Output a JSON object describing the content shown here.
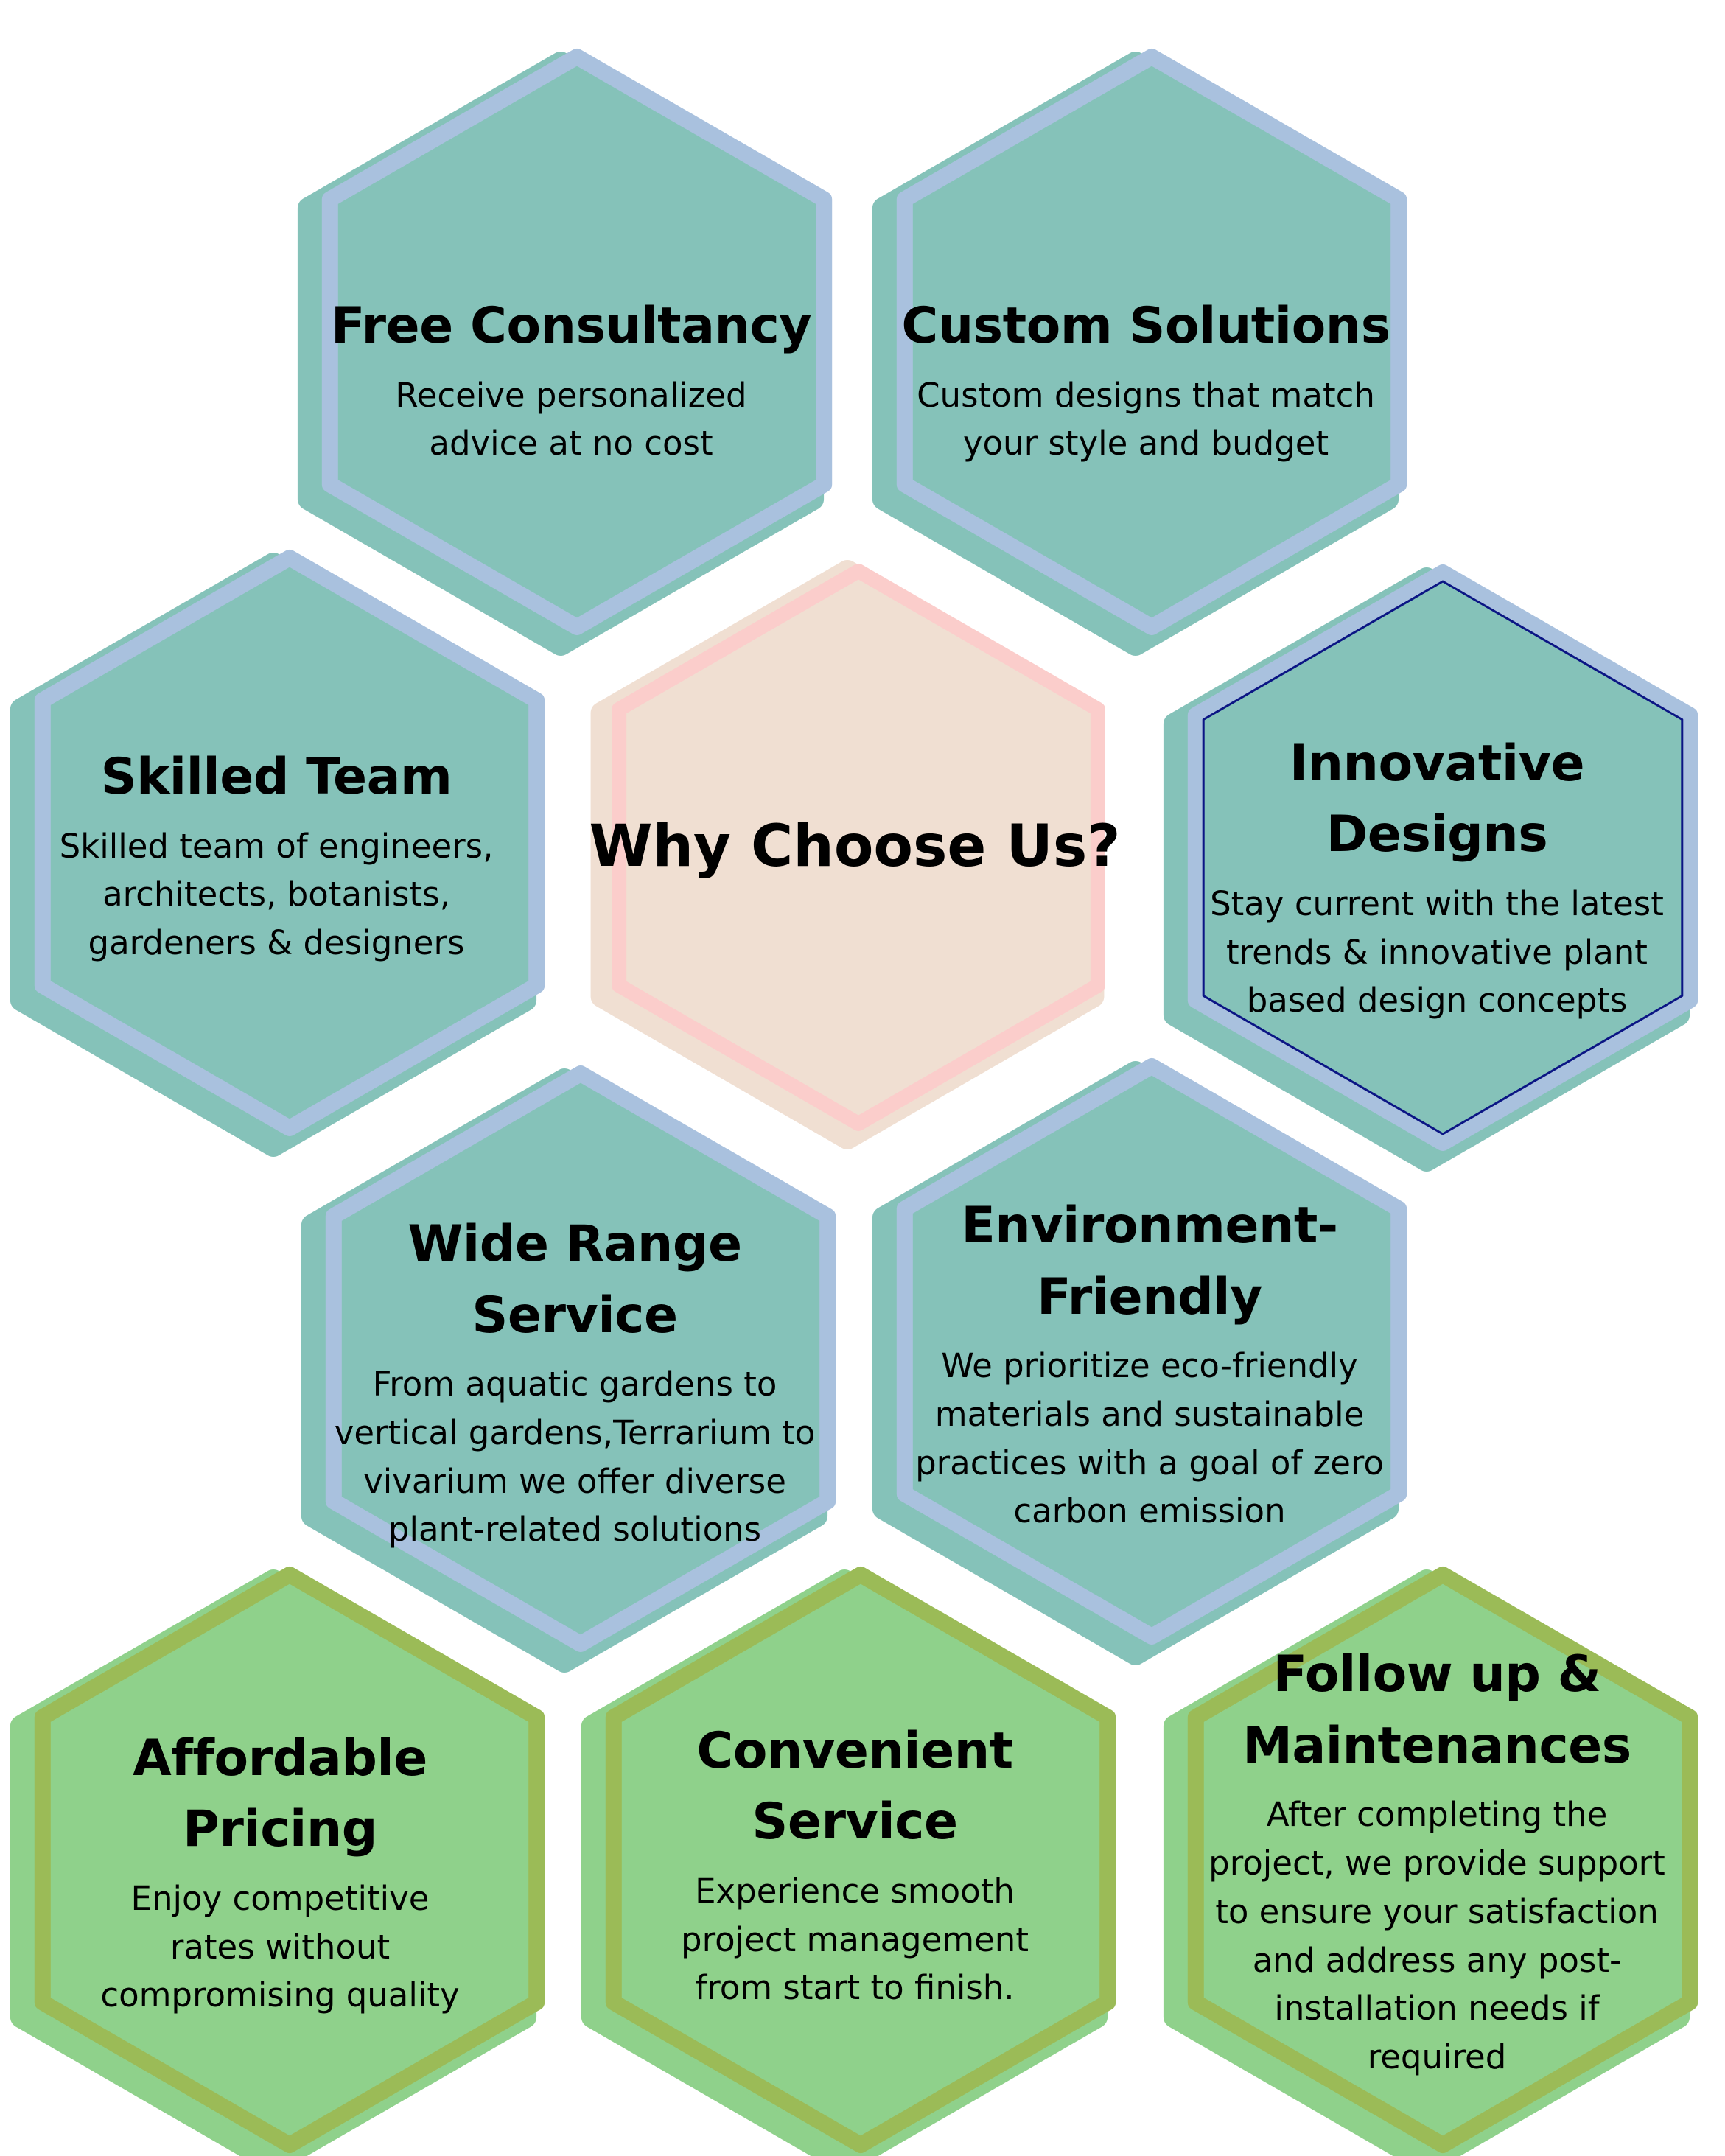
{
  "colors": {
    "teal_fill": "#85c2b9",
    "blue_border": "#a9c1de",
    "green_fill": "#8fd18b",
    "green_border": "#9bbb57",
    "center_fill": "#f0dfd2",
    "center_border": "#fbcdcb",
    "navy_outline": "#0b1584",
    "text": "#000000"
  },
  "center": {
    "title": "Why Choose Us?"
  },
  "hexagons": [
    {
      "key": "free-consultancy",
      "style": "teal",
      "title": [
        "Free Consultancy"
      ],
      "desc": [
        "Receive personalized",
        "advice at no cost"
      ]
    },
    {
      "key": "custom-solutions",
      "style": "teal",
      "title": [
        "Custom Solutions"
      ],
      "desc": [
        "Custom designs that match",
        "your style and budget"
      ]
    },
    {
      "key": "skilled-team",
      "style": "teal",
      "title": [
        "Skilled Team"
      ],
      "desc": [
        "Skilled team of engineers,",
        "architects, botanists,",
        "gardeners & designers"
      ]
    },
    {
      "key": "innovative-designs",
      "style": "teal",
      "title": [
        "Innovative Designs"
      ],
      "desc": [
        "Stay current with the latest",
        "trends & innovative plant",
        "based design concepts"
      ]
    },
    {
      "key": "wide-range-service",
      "style": "teal",
      "title": [
        "Wide Range Service"
      ],
      "desc": [
        "From aquatic gardens to",
        "vertical gardens,Terrarium to",
        "vivarium we offer diverse",
        "plant-related solutions"
      ]
    },
    {
      "key": "environment-friendly",
      "style": "teal",
      "title": [
        "Environment-",
        "Friendly"
      ],
      "desc": [
        "We prioritize eco-friendly",
        "materials and sustainable",
        "practices with a goal of zero",
        "carbon emission"
      ]
    },
    {
      "key": "affordable-pricing",
      "style": "green",
      "title": [
        "Affordable Pricing"
      ],
      "desc": [
        "Enjoy competitive",
        "rates without",
        "compromising quality"
      ]
    },
    {
      "key": "convenient-service",
      "style": "green",
      "title": [
        "Convenient Service"
      ],
      "desc": [
        "Experience smooth",
        "project management",
        "from start to finish."
      ]
    },
    {
      "key": "follow-up-maintenances",
      "style": "green",
      "title": [
        "Follow up &",
        "Maintenances"
      ],
      "desc": [
        "After completing the",
        "project, we provide support",
        "to ensure your satisfaction",
        "and address any post-",
        "installation needs if",
        "required"
      ]
    }
  ]
}
